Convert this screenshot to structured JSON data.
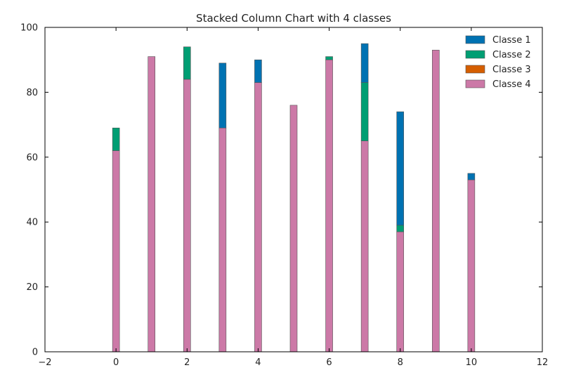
{
  "chart_data": {
    "type": "bar",
    "stacked": true,
    "title": "Stacked Column Chart with 4 classes",
    "xlabel": "",
    "ylabel": "",
    "xlim": [
      -2,
      12
    ],
    "ylim": [
      0,
      100
    ],
    "x_ticks": [
      -2,
      0,
      2,
      4,
      6,
      8,
      10,
      12
    ],
    "y_ticks": [
      0,
      20,
      40,
      60,
      80,
      100
    ],
    "x_tick_labels": [
      "−2",
      "0",
      "2",
      "4",
      "6",
      "8",
      "10",
      "12"
    ],
    "y_tick_labels": [
      "0",
      "20",
      "40",
      "60",
      "80",
      "100"
    ],
    "grid": false,
    "legend_position": "top-right",
    "x": [
      0,
      1,
      2,
      3,
      4,
      5,
      6,
      7,
      8,
      9,
      10
    ],
    "series": [
      {
        "name": "Classe 4",
        "color": "#cc79a7",
        "values": [
          62,
          91,
          84,
          69,
          83,
          76,
          90,
          65,
          37,
          93,
          53
        ]
      },
      {
        "name": "Classe 3",
        "color": "#d55e00",
        "values": [
          0,
          0,
          0,
          0,
          0,
          0,
          0,
          0,
          0,
          0,
          0
        ]
      },
      {
        "name": "Classe 2",
        "color": "#009e73",
        "values": [
          7,
          0,
          10,
          0,
          0,
          0,
          1,
          18,
          2,
          0,
          0
        ]
      },
      {
        "name": "Classe 1",
        "color": "#0072b2",
        "values": [
          0,
          0,
          0,
          20,
          7,
          0,
          0,
          12,
          35,
          0,
          2
        ]
      }
    ],
    "legend_order": [
      "Classe 1",
      "Classe 2",
      "Classe 3",
      "Classe 4"
    ]
  }
}
